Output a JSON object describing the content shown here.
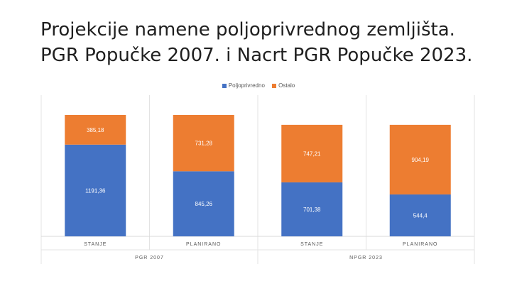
{
  "slide": {
    "title": "Projekcije namene poljoprivrednog zemljišta. PGR Popučke 2007. i Nacrt PGR Popučke 2023."
  },
  "chart_data": {
    "type": "bar",
    "stacked": true,
    "categories": [
      "STANJE",
      "PLANIRANO",
      "STANJE",
      "PLANIRANO"
    ],
    "groups": [
      {
        "label": "PGR 2007",
        "categories": [
          "STANJE",
          "PLANIRANO"
        ]
      },
      {
        "label": "NPGR 2023",
        "categories": [
          "STANJE",
          "PLANIRANO"
        ]
      }
    ],
    "series": [
      {
        "name": "Poljoprivredno",
        "color": "#4472c4",
        "values": [
          1191.36,
          845.26,
          701.38,
          544.4
        ],
        "labels": [
          "1191,36",
          "845,26",
          "701,38",
          "544,4"
        ]
      },
      {
        "name": "Ostalo",
        "color": "#ed7d31",
        "values": [
          385.18,
          731.28,
          747.21,
          904.19
        ],
        "labels": [
          "385,18",
          "731,28",
          "747,21",
          "904,19"
        ]
      }
    ],
    "ylim": [
      0,
      1600
    ],
    "legend_position": "top-center",
    "grid": false
  }
}
